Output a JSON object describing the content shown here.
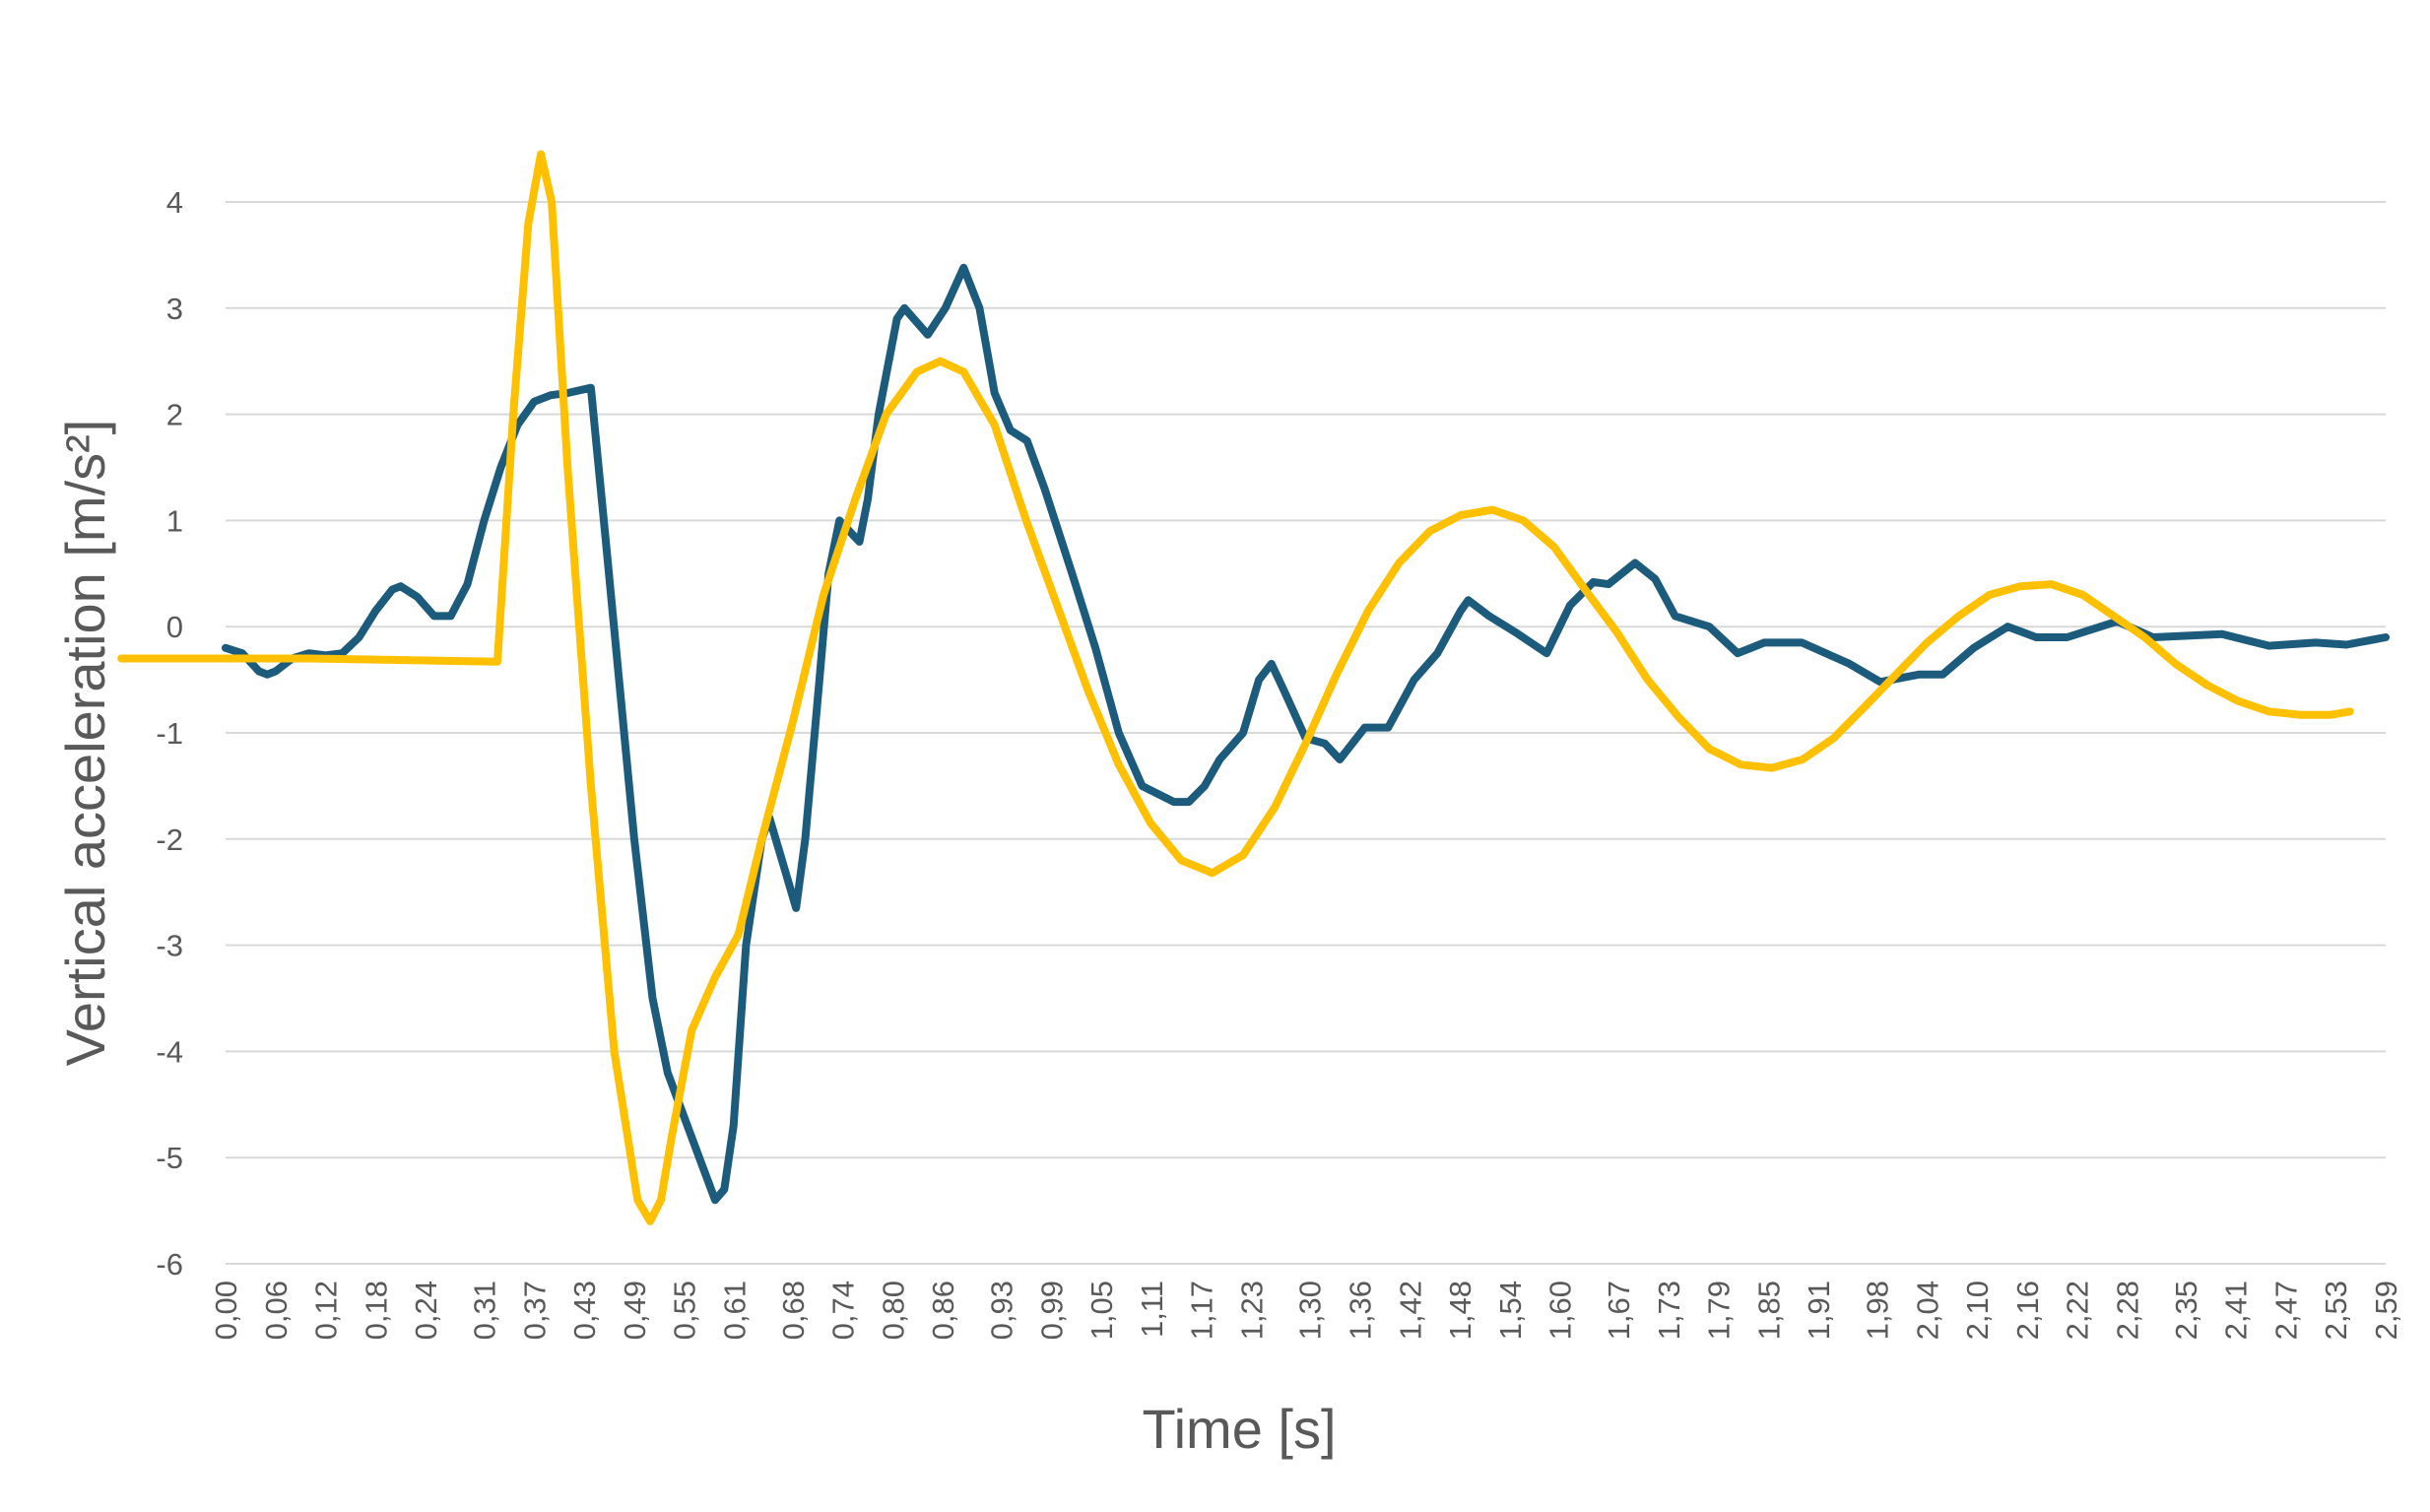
{
  "chart_data": {
    "type": "line",
    "xlabel": "Time [s]",
    "ylabel": "Vertical acceleration [m/s²]",
    "xlim": [
      0,
      2.59
    ],
    "ylim": [
      -6,
      4
    ],
    "yticks": [
      4,
      3,
      2,
      1,
      0,
      -1,
      -2,
      -3,
      -4,
      -5,
      -6
    ],
    "xticks": [
      {
        "value": 0,
        "label": "0,00"
      },
      {
        "value": 0.06,
        "label": "0,06"
      },
      {
        "value": 0.12,
        "label": "0,12"
      },
      {
        "value": 0.18,
        "label": "0,18"
      },
      {
        "value": 0.24,
        "label": "0,24"
      },
      {
        "value": 0.31,
        "label": "0,31"
      },
      {
        "value": 0.37,
        "label": "0,37"
      },
      {
        "value": 0.43,
        "label": "0,43"
      },
      {
        "value": 0.49,
        "label": "0,49"
      },
      {
        "value": 0.55,
        "label": "0,55"
      },
      {
        "value": 0.61,
        "label": "0,61"
      },
      {
        "value": 0.68,
        "label": "0,68"
      },
      {
        "value": 0.74,
        "label": "0,74"
      },
      {
        "value": 0.8,
        "label": "0,80"
      },
      {
        "value": 0.86,
        "label": "0,86"
      },
      {
        "value": 0.93,
        "label": "0,93"
      },
      {
        "value": 0.99,
        "label": "0,99"
      },
      {
        "value": 1.05,
        "label": "1,05"
      },
      {
        "value": 1.11,
        "label": "1,11"
      },
      {
        "value": 1.17,
        "label": "1,17"
      },
      {
        "value": 1.23,
        "label": "1,23"
      },
      {
        "value": 1.3,
        "label": "1,30"
      },
      {
        "value": 1.36,
        "label": "1,36"
      },
      {
        "value": 1.42,
        "label": "1,42"
      },
      {
        "value": 1.48,
        "label": "1,48"
      },
      {
        "value": 1.54,
        "label": "1,54"
      },
      {
        "value": 1.6,
        "label": "1,60"
      },
      {
        "value": 1.67,
        "label": "1,67"
      },
      {
        "value": 1.73,
        "label": "1,73"
      },
      {
        "value": 1.79,
        "label": "1,79"
      },
      {
        "value": 1.85,
        "label": "1,85"
      },
      {
        "value": 1.91,
        "label": "1,91"
      },
      {
        "value": 1.98,
        "label": "1,98"
      },
      {
        "value": 2.04,
        "label": "2,04"
      },
      {
        "value": 2.1,
        "label": "2,10"
      },
      {
        "value": 2.16,
        "label": "2,16"
      },
      {
        "value": 2.22,
        "label": "2,22"
      },
      {
        "value": 2.28,
        "label": "2,28"
      },
      {
        "value": 2.35,
        "label": "2,35"
      },
      {
        "value": 2.41,
        "label": "2,41"
      },
      {
        "value": 2.47,
        "label": "2,47"
      },
      {
        "value": 2.53,
        "label": "2,53"
      },
      {
        "value": 2.59,
        "label": "2,59"
      }
    ],
    "grid": true,
    "series": [
      {
        "color": "#1d5b7d",
        "x": [
          0,
          0.02,
          0.04,
          0.05,
          0.06,
          0.08,
          0.1,
          0.12,
          0.14,
          0.16,
          0.18,
          0.2,
          0.21,
          0.23,
          0.25,
          0.27,
          0.29,
          0.31,
          0.33,
          0.35,
          0.37,
          0.39,
          0.41,
          0.438,
          0.456,
          0.49,
          0.512,
          0.53,
          0.568,
          0.587,
          0.598,
          0.609,
          0.624,
          0.643,
          0.652,
          0.671,
          0.684,
          0.695,
          0.712,
          0.723,
          0.736,
          0.76,
          0.77,
          0.783,
          0.805,
          0.814,
          0.842,
          0.863,
          0.885,
          0.904,
          0.922,
          0.941,
          0.961,
          0.982,
          1.015,
          1.043,
          1.071,
          1.099,
          1.137,
          1.155,
          1.174,
          1.192,
          1.22,
          1.239,
          1.254,
          1.269,
          1.295,
          1.318,
          1.336,
          1.366,
          1.394,
          1.425,
          1.453,
          1.481,
          1.49,
          1.515,
          1.546,
          1.584,
          1.612,
          1.64,
          1.658,
          1.69,
          1.714,
          1.738,
          1.779,
          1.813,
          1.845,
          1.89,
          1.947,
          1.984,
          2.031,
          2.059,
          2.096,
          2.137,
          2.171,
          2.208,
          2.268,
          2.311,
          2.394,
          2.45,
          2.506,
          2.543,
          2.59
        ],
        "values": [
          -0.2,
          -0.25,
          -0.42,
          -0.45,
          -0.42,
          -0.3,
          -0.25,
          -0.27,
          -0.25,
          -0.1,
          0.15,
          0.35,
          0.38,
          0.28,
          0.1,
          0.1,
          0.4,
          1.0,
          1.5,
          1.9,
          2.12,
          2.18,
          2.2,
          2.25,
          0.8,
          -2.0,
          -3.5,
          -4.2,
          -5.0,
          -5.4,
          -5.3,
          -4.7,
          -3.0,
          -2.0,
          -1.8,
          -2.3,
          -2.65,
          -2.0,
          -0.5,
          0.5,
          1.0,
          0.8,
          1.2,
          2.0,
          2.9,
          3.0,
          2.75,
          3.0,
          3.38,
          3.0,
          2.2,
          1.85,
          1.75,
          1.3,
          0.5,
          -0.2,
          -1.0,
          -1.5,
          -1.65,
          -1.65,
          -1.5,
          -1.25,
          -1.0,
          -0.5,
          -0.35,
          -0.6,
          -1.05,
          -1.1,
          -1.25,
          -0.95,
          -0.95,
          -0.5,
          -0.25,
          0.15,
          0.25,
          0.1,
          -0.05,
          -0.25,
          0.2,
          0.42,
          0.4,
          0.6,
          0.45,
          0.1,
          0.0,
          -0.25,
          -0.15,
          -0.15,
          -0.35,
          -0.52,
          -0.45,
          -0.45,
          -0.2,
          0.0,
          -0.1,
          -0.1,
          0.05,
          -0.1,
          -0.07,
          -0.18,
          -0.15,
          -0.17,
          -0.1
        ]
      },
      {
        "color": "#ffc000",
        "x": [
          -0.125,
          0.1,
          0.326,
          0.345,
          0.363,
          0.378,
          0.391,
          0.41,
          0.438,
          0.466,
          0.494,
          0.509,
          0.522,
          0.535,
          0.559,
          0.587,
          0.615,
          0.643,
          0.68,
          0.717,
          0.755,
          0.792,
          0.829,
          0.857,
          0.885,
          0.922,
          0.96,
          0.997,
          1.034,
          1.071,
          1.109,
          1.146,
          1.183,
          1.22,
          1.258,
          1.295,
          1.332,
          1.37,
          1.407,
          1.444,
          1.481,
          1.519,
          1.556,
          1.593,
          1.63,
          1.668,
          1.705,
          1.742,
          1.779,
          1.817,
          1.854,
          1.891,
          1.928,
          1.966,
          2.003,
          2.04,
          2.078,
          2.115,
          2.152,
          2.189,
          2.227,
          2.264,
          2.301,
          2.338,
          2.376,
          2.413,
          2.45,
          2.487,
          2.524,
          2.547
        ],
        "values": [
          -0.3,
          -0.3,
          -0.33,
          2.0,
          3.8,
          4.45,
          4.0,
          1.5,
          -1.5,
          -4.0,
          -5.4,
          -5.6,
          -5.4,
          -4.8,
          -3.8,
          -3.3,
          -2.9,
          -2.0,
          -0.9,
          0.3,
          1.2,
          2.0,
          2.4,
          2.5,
          2.4,
          1.9,
          1.0,
          0.2,
          -0.6,
          -1.3,
          -1.85,
          -2.2,
          -2.32,
          -2.15,
          -1.7,
          -1.1,
          -0.45,
          0.15,
          0.6,
          0.9,
          1.05,
          1.1,
          1.0,
          0.75,
          0.35,
          -0.05,
          -0.5,
          -0.85,
          -1.15,
          -1.3,
          -1.33,
          -1.25,
          -1.05,
          -0.75,
          -0.45,
          -0.15,
          0.1,
          0.3,
          0.38,
          0.4,
          0.3,
          0.1,
          -0.1,
          -0.35,
          -0.55,
          -0.7,
          -0.8,
          -0.83,
          -0.83,
          -0.8
        ]
      }
    ]
  }
}
